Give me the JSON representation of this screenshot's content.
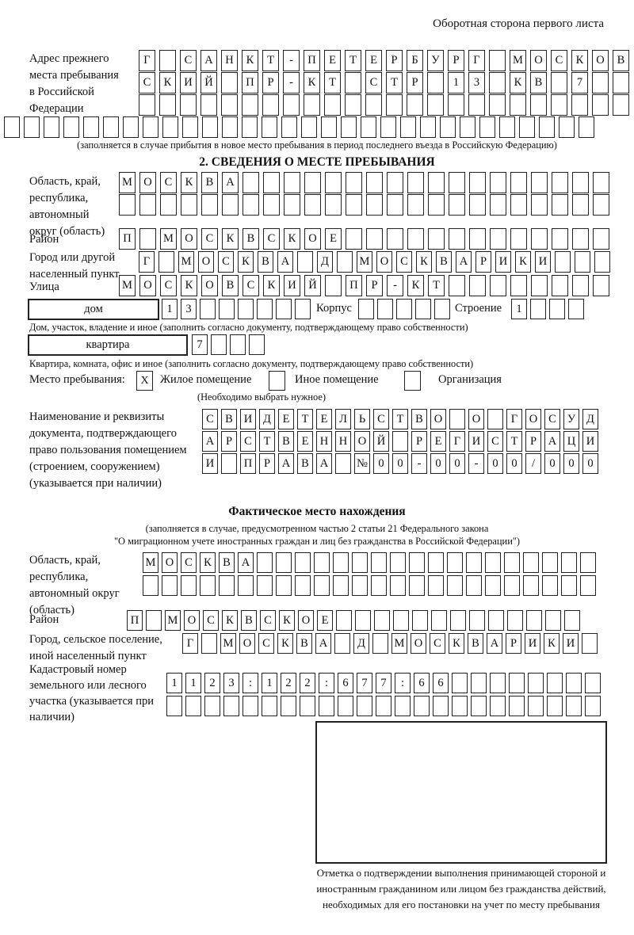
{
  "page": {
    "header_note": "Оборотная сторона первого листа"
  },
  "section_prev": {
    "label": "Адрес прежнего места пребывания в Российской Федерации",
    "row1": {
      "cells": "Г САНКТ-ПЕТЕРБУРГ МОСКОВ",
      "count": 24
    },
    "row2": {
      "cells": "СКИЙ ПР-КТ СТР 13 КВ 7",
      "count": 24
    },
    "row3": {
      "cells": "",
      "count": 24
    },
    "row4": {
      "cells": "",
      "count": 30
    },
    "note": "(заполняется в случае прибытия в новое место пребывания в период последнего въезда в Российскую Федерацию)"
  },
  "section2": {
    "title": "2. СВЕДЕНИЯ О МЕСТЕ ПРЕБЫВАНИЯ",
    "oblast": {
      "label": "Область, край, республика, автономный округ (область)",
      "row1": {
        "cells": "МОСКВА",
        "count": 24
      },
      "row2": {
        "cells": "",
        "count": 24
      }
    },
    "raion": {
      "label": "Район",
      "row": {
        "cells": "П МОСКВСКОЕ",
        "count": 24
      }
    },
    "gorod": {
      "label": "Город или другой населенный пункт",
      "row": {
        "cells": "Г МОСКВА Д МОСКВАРИКИ",
        "count": 24
      }
    },
    "ulitsa": {
      "label": "Улица",
      "row": {
        "cells": "МОСКОВСКИЙ ПР-КТ",
        "count": 24
      }
    },
    "dom": {
      "box_label": "дом",
      "cells": {
        "cells": "13",
        "count": 8
      },
      "korpus_label": "Корпус",
      "korpus_cells": {
        "cells": "",
        "count": 5
      },
      "stroenie_label": "Строение",
      "stroenie_cells": {
        "cells": "1",
        "count": 4
      },
      "note": "Дом, участок, владение и иное (заполнить согласно документу, подтверждающему право собственности)"
    },
    "kvartira": {
      "box_label": "квартира",
      "cells": {
        "cells": "7",
        "count": 4
      },
      "note": "Квартира, комната, офис и иное (заполнить согласно документу, подтверждающему право собственности)"
    },
    "mesto": {
      "label": "Место пребывания:",
      "options": [
        {
          "label": "Жилое помещение",
          "checked": "X"
        },
        {
          "label": "Иное помещение",
          "checked": ""
        },
        {
          "label": "Организация",
          "checked": ""
        }
      ],
      "note": "(Необходимо выбрать нужное)"
    },
    "document": {
      "label": "Наименование и реквизиты документа, подтверждающего право пользования помещением (строением, сооружением) (указывается при наличии)",
      "row1": {
        "cells": "СВИДЕТЕЛЬСТВО О ГОСУД",
        "count": 21
      },
      "row2": {
        "cells": "АРСТВЕННОЙ РЕГИСТРАЦИ",
        "count": 21
      },
      "row3": {
        "cells": "И ПРАВА №00-00-00/000",
        "count": 21
      }
    }
  },
  "section_fact": {
    "title": "Фактическое место нахождения",
    "note_line1": "(заполняется в случае, предусмотренном частью 2 статьи 21 Федерального закона",
    "note_line2": "\"О миграционном учете иностранных граждан и лиц без гражданства в Российской Федерации\")",
    "oblast": {
      "label": "Область, край, республика, автономный округ (область)",
      "row1": {
        "cells": "МОСКВА",
        "count": 24
      },
      "row2": {
        "cells": "",
        "count": 24
      }
    },
    "raion": {
      "label": "Район",
      "row": {
        "cells": "П МОСКВСКОЕ",
        "count": 24
      }
    },
    "gorod": {
      "label": "Город, сельское поселение, иной населенный пункт",
      "row": {
        "cells": "Г МОСКВА Д МОСКВАРИКИ",
        "count": 22
      }
    },
    "kadastr": {
      "label": "Кадастровый номер земельного или лесного участка (указывается при наличии)",
      "row1": {
        "cells": "1123:122:677:66",
        "count": 23
      },
      "row2": {
        "cells": "",
        "count": 23
      }
    },
    "stamp_note": "Отметка о подтверждении выполнения принимающей стороной и иностранным гражданином или лицом без гражданства действий, необходимых для его постановки на учет по месту пребывания"
  }
}
